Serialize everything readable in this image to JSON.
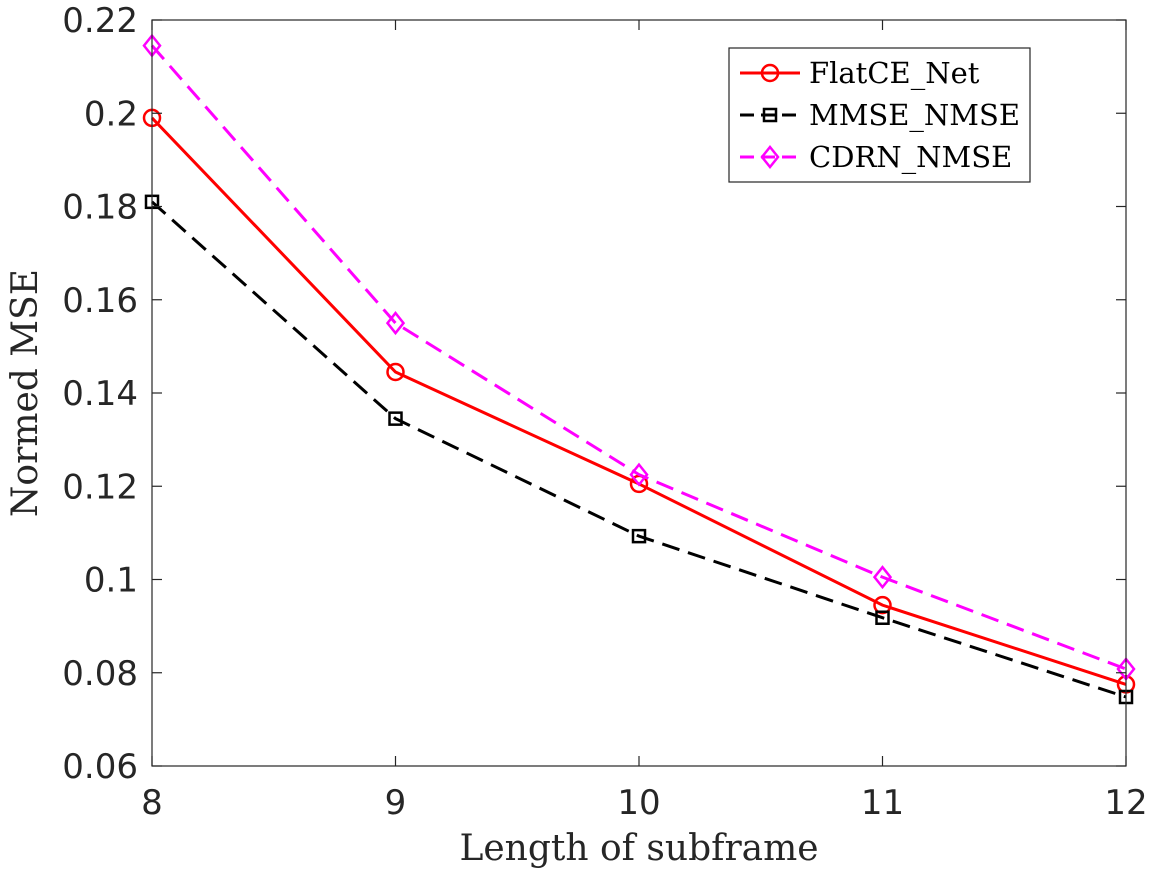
{
  "chart_data": {
    "type": "line",
    "title": "",
    "xlabel": "Length of subframe",
    "ylabel": "Normed MSE",
    "x": [
      8,
      9,
      10,
      11,
      12
    ],
    "xlim": [
      8,
      12
    ],
    "ylim": [
      0.06,
      0.22
    ],
    "x_ticks": [
      "8",
      "9",
      "10",
      "11",
      "12"
    ],
    "y_ticks": [
      "0.06",
      "0.08",
      "0.1",
      "0.12",
      "0.14",
      "0.16",
      "0.18",
      "0.2",
      "0.22"
    ],
    "grid": false,
    "legend_position": "top-right",
    "series": [
      {
        "name": "FlatCE_Net",
        "values": [
          0.199,
          0.1445,
          0.1205,
          0.0945,
          0.0775
        ],
        "color": "#ff0000",
        "line_style": "solid",
        "marker": "circle"
      },
      {
        "name": "MMSE_NMSE",
        "values": [
          0.181,
          0.1345,
          0.1093,
          0.0918,
          0.0748
        ],
        "color": "#000000",
        "line_style": "dashed",
        "marker": "square"
      },
      {
        "name": "CDRN_NMSE",
        "values": [
          0.2145,
          0.155,
          0.1225,
          0.1005,
          0.0808
        ],
        "color": "#ff00ff",
        "line_style": "dashed",
        "marker": "diamond"
      }
    ]
  }
}
